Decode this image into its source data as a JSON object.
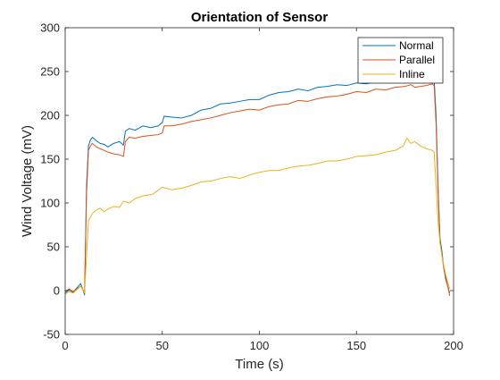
{
  "chart_data": {
    "type": "line",
    "title": "Orientation of Sensor",
    "xlabel": "Time (s)",
    "ylabel": "Wind Voltage (mV)",
    "xlim": [
      0,
      200
    ],
    "ylim": [
      -50,
      300
    ],
    "xticks": [
      0,
      50,
      100,
      150,
      200
    ],
    "yticks": [
      -50,
      0,
      50,
      100,
      150,
      200,
      250,
      300
    ],
    "grid": false,
    "legend_position": "top-right",
    "series": [
      {
        "name": "Normal",
        "color": "#0072BD",
        "x": [
          0,
          2,
          4,
          6,
          8,
          10,
          11,
          12,
          13,
          14,
          16,
          18,
          20,
          22,
          25,
          28,
          30,
          31,
          33,
          36,
          40,
          44,
          48,
          50,
          51,
          55,
          60,
          65,
          70,
          75,
          80,
          85,
          90,
          95,
          100,
          105,
          110,
          115,
          120,
          125,
          130,
          135,
          140,
          145,
          150,
          155,
          160,
          165,
          170,
          175,
          178,
          180,
          183,
          186,
          189,
          190,
          191,
          192,
          193,
          194,
          195,
          196,
          197,
          198
        ],
        "y": [
          -3,
          1,
          -2,
          3,
          8,
          -5,
          120,
          165,
          172,
          175,
          171,
          168,
          167,
          164,
          168,
          170,
          166,
          182,
          185,
          183,
          188,
          186,
          188,
          192,
          199,
          198,
          197,
          200,
          206,
          208,
          213,
          214,
          216,
          218,
          218,
          223,
          226,
          227,
          230,
          228,
          232,
          233,
          235,
          234,
          237,
          236,
          238,
          240,
          238,
          239,
          240,
          246,
          241,
          240,
          243,
          241,
          200,
          120,
          60,
          45,
          25,
          12,
          5,
          -3
        ]
      },
      {
        "name": "Parallel",
        "color": "#D95319",
        "x": [
          0,
          2,
          4,
          6,
          8,
          10,
          11,
          12,
          13,
          14,
          16,
          18,
          20,
          22,
          25,
          28,
          30,
          31,
          33,
          36,
          40,
          44,
          48,
          50,
          51,
          55,
          60,
          65,
          70,
          75,
          80,
          85,
          90,
          95,
          100,
          105,
          110,
          115,
          120,
          125,
          130,
          135,
          140,
          145,
          150,
          155,
          160,
          165,
          170,
          175,
          178,
          180,
          183,
          186,
          189,
          190,
          191,
          192,
          193,
          194,
          195,
          196,
          197,
          198
        ],
        "y": [
          -1,
          2,
          -1,
          2,
          5,
          -2,
          110,
          160,
          165,
          168,
          164,
          162,
          160,
          158,
          156,
          155,
          153,
          170,
          175,
          174,
          176,
          177,
          178,
          180,
          188,
          188,
          190,
          193,
          195,
          197,
          200,
          203,
          205,
          207,
          206,
          210,
          212,
          213,
          217,
          216,
          219,
          221,
          222,
          224,
          227,
          226,
          230,
          229,
          232,
          233,
          235,
          232,
          233,
          234,
          236,
          234,
          190,
          115,
          55,
          40,
          25,
          15,
          5,
          -6
        ]
      },
      {
        "name": "Inline",
        "color": "#EDB120",
        "x": [
          0,
          2,
          4,
          6,
          8,
          10,
          11,
          12,
          14,
          16,
          18,
          20,
          22,
          25,
          28,
          30,
          33,
          36,
          40,
          45,
          50,
          55,
          60,
          65,
          70,
          75,
          80,
          85,
          90,
          95,
          100,
          105,
          110,
          115,
          120,
          125,
          130,
          135,
          140,
          145,
          150,
          155,
          160,
          165,
          170,
          174,
          176,
          178,
          180,
          183,
          186,
          189,
          190,
          191,
          192,
          193,
          194,
          195,
          196,
          197,
          198
        ],
        "y": [
          -4,
          -1,
          -3,
          1,
          5,
          -3,
          40,
          80,
          88,
          92,
          94,
          90,
          93,
          96,
          95,
          102,
          100,
          105,
          108,
          110,
          118,
          115,
          117,
          120,
          124,
          125,
          128,
          130,
          128,
          132,
          135,
          137,
          137,
          140,
          142,
          143,
          145,
          148,
          148,
          150,
          153,
          154,
          155,
          158,
          160,
          165,
          174,
          168,
          170,
          165,
          162,
          160,
          158,
          120,
          80,
          55,
          40,
          28,
          18,
          10,
          2
        ]
      }
    ]
  }
}
